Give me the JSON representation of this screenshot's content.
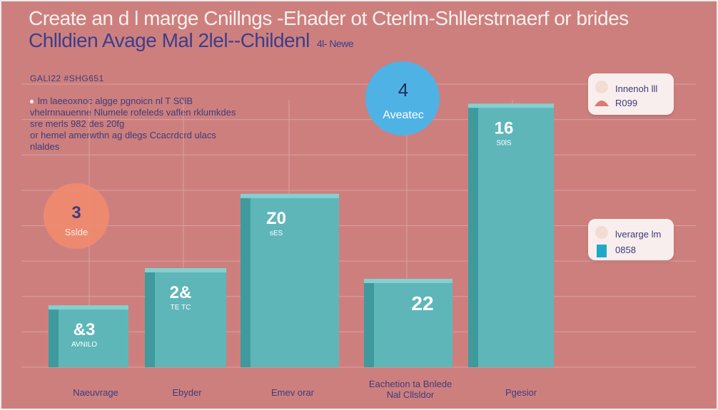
{
  "header": {
    "title_line1": "Create an d l marge Cnillngs -Ehader ot Cterlm-Shllerstrnaerf or brides",
    "title_line2": "Chlldien Avage Mal 2lel--Childenl",
    "title_tag": "4l- Newe"
  },
  "info": {
    "kicker": "GALI22 #SHG651",
    "paragraph": [
      "lm laeeoxnoc algge pgnoicn nl T S0lB",
      "vhelrnnauenne Nlumele rofeleds vaflen rklumkdes",
      "sre merls 982 des 20fg",
      "or hemel amerwthn ag dlegs Ccacrdcrd ulacs",
      "nlaldes"
    ]
  },
  "legend": [
    {
      "label": "Innenoh  lll",
      "sub": "R099",
      "color_top": "#f4dcd2",
      "color_bottom": "#e07a6d"
    },
    {
      "label": "lverarge  lm",
      "sub": "0858",
      "color_top": "#f4dcd2",
      "color_bottom": "#1fa9c9"
    }
  ],
  "chart_data": {
    "type": "bar",
    "title": "Create an d l marge Cnillngs -Ehader ot Cterlm-Shllerstrnaerf or brides",
    "xlabel": "",
    "ylabel": "",
    "ylim": [
      0,
      160
    ],
    "grid": true,
    "categories": [
      "Naeuvrage",
      "Ebyder",
      "Emev orar",
      "Eachetion ta Bnlede Nal Cllsldor",
      "Pgesior"
    ],
    "values": [
      35,
      56,
      98,
      50,
      149
    ],
    "bar_labels": [
      "&3",
      "2&",
      "Z0",
      "22",
      "16"
    ],
    "bar_sublabels": [
      "AVNILO",
      "TE TC",
      "sES",
      "",
      "S0lS"
    ],
    "bubbles": [
      {
        "value": "3",
        "label": "Sslde",
        "color": "#f08a6e"
      },
      {
        "value": "4",
        "label": "Aveatec",
        "color": "#4fb2e4"
      }
    ],
    "colors": {
      "bar": "#5fb6b9",
      "bar_side": "#3f9a9e",
      "bar_top": "#86cfcf",
      "grid": "#d9a1a0"
    }
  }
}
